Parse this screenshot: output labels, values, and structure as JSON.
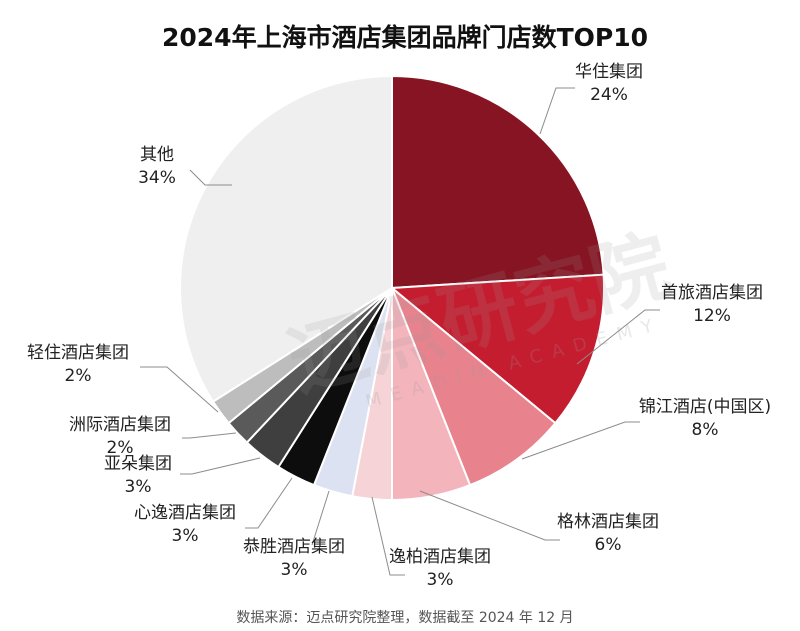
{
  "chart_data": {
    "type": "pie",
    "title": "2024年上海市酒店集团品牌门店数TOP10",
    "categories": [
      "华住集团",
      "首旅酒店集团",
      "锦江酒店(中国区)",
      "格林酒店集团",
      "逸柏酒店集团",
      "恭胜酒店集团",
      "心逸酒店集团",
      "亚朵集团",
      "洲际酒店集团",
      "轻住酒店集团",
      "其他"
    ],
    "values": [
      24,
      12,
      8,
      6,
      3,
      3,
      3,
      3,
      2,
      2,
      34
    ],
    "value_labels": [
      "24%",
      "12%",
      "8%",
      "6%",
      "3%",
      "3%",
      "3%",
      "3%",
      "2%",
      "2%",
      "34%"
    ],
    "colors": [
      "#861422",
      "#c41d30",
      "#e8838e",
      "#f3b4bc",
      "#f6d3d6",
      "#dde2f2",
      "#0d0d0d",
      "#3f3f3f",
      "#5a5a5a",
      "#bdbdbd",
      "#efefef"
    ],
    "source": "数据来源：迈点研究院整理，数据截至 2024 年 12 月",
    "watermark": "迈点研究院",
    "watermark_sub": "MEADIN ACADEMY"
  }
}
